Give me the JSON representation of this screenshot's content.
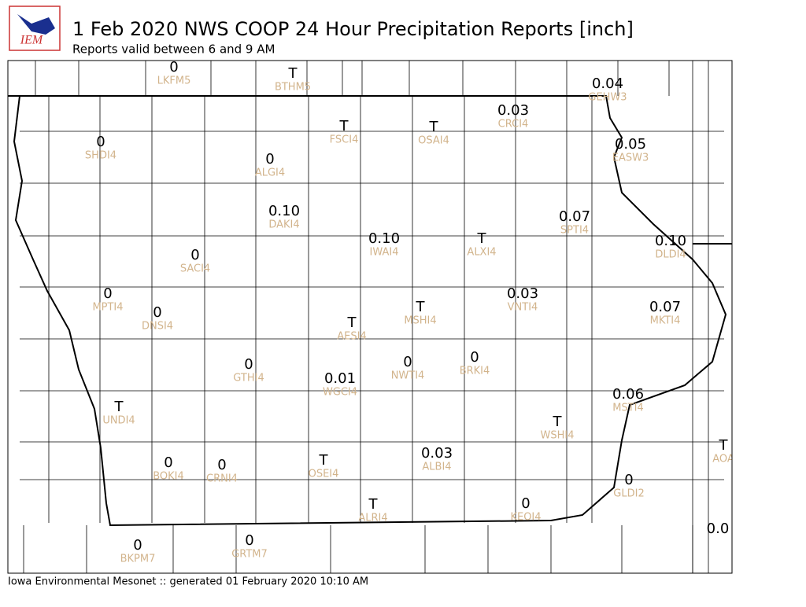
{
  "header": {
    "logo": "IEM",
    "title": "1 Feb 2020 NWS COOP 24 Hour Precipitation Reports [inch]",
    "subtitle": "Reports valid between 6 and 9 AM"
  },
  "stations": [
    {
      "value": "0",
      "id": "LKFM5"
    },
    {
      "value": "T",
      "id": "BTHM5"
    },
    {
      "value": "0.04",
      "id": "GEHW3"
    },
    {
      "value": "0.03",
      "id": "CRCI4"
    },
    {
      "value": "T",
      "id": "FSCI4"
    },
    {
      "value": "T",
      "id": "OSAI4"
    },
    {
      "value": "0",
      "id": "SHDI4"
    },
    {
      "value": "0",
      "id": "ALGI4"
    },
    {
      "value": "0.05",
      "id": "EASW3"
    },
    {
      "value": "0.10",
      "id": "DAKI4"
    },
    {
      "value": "0.07",
      "id": "SPTI4"
    },
    {
      "value": "0.10",
      "id": "IWAI4"
    },
    {
      "value": "T",
      "id": "ALXI4"
    },
    {
      "value": "0.10",
      "id": "DLDI4"
    },
    {
      "value": "0",
      "id": "SACI4"
    },
    {
      "value": "0",
      "id": "MPTI4"
    },
    {
      "value": "0.03",
      "id": "VNTI4"
    },
    {
      "value": "0",
      "id": "DNSI4"
    },
    {
      "value": "T",
      "id": "MSHI4"
    },
    {
      "value": "0.07",
      "id": "MKTI4"
    },
    {
      "value": "T",
      "id": "AESI4"
    },
    {
      "value": "0",
      "id": "GTHI4"
    },
    {
      "value": "0",
      "id": "NWTI4"
    },
    {
      "value": "0",
      "id": "BRKI4"
    },
    {
      "value": "0.01",
      "id": "WGCI4"
    },
    {
      "value": "0.06",
      "id": "MSTI4"
    },
    {
      "value": "T",
      "id": "UNDI4"
    },
    {
      "value": "T",
      "id": "WSHI4"
    },
    {
      "value": "T",
      "id": "AOA"
    },
    {
      "value": "0",
      "id": "BOKI4"
    },
    {
      "value": "0",
      "id": "CRNI4"
    },
    {
      "value": "T",
      "id": "OSEI4"
    },
    {
      "value": "0.03",
      "id": "ALBI4"
    },
    {
      "value": "0",
      "id": "GLDI2"
    },
    {
      "value": "T",
      "id": "ALRI4"
    },
    {
      "value": "0",
      "id": "KEOI4"
    },
    {
      "value": "0.0"
    },
    {
      "value": "0",
      "id": "BKPM7"
    },
    {
      "value": "0",
      "id": "GRTM7"
    }
  ],
  "footer": "Iowa Environmental Mesonet :: generated 01 February 2020 10:10 AM"
}
